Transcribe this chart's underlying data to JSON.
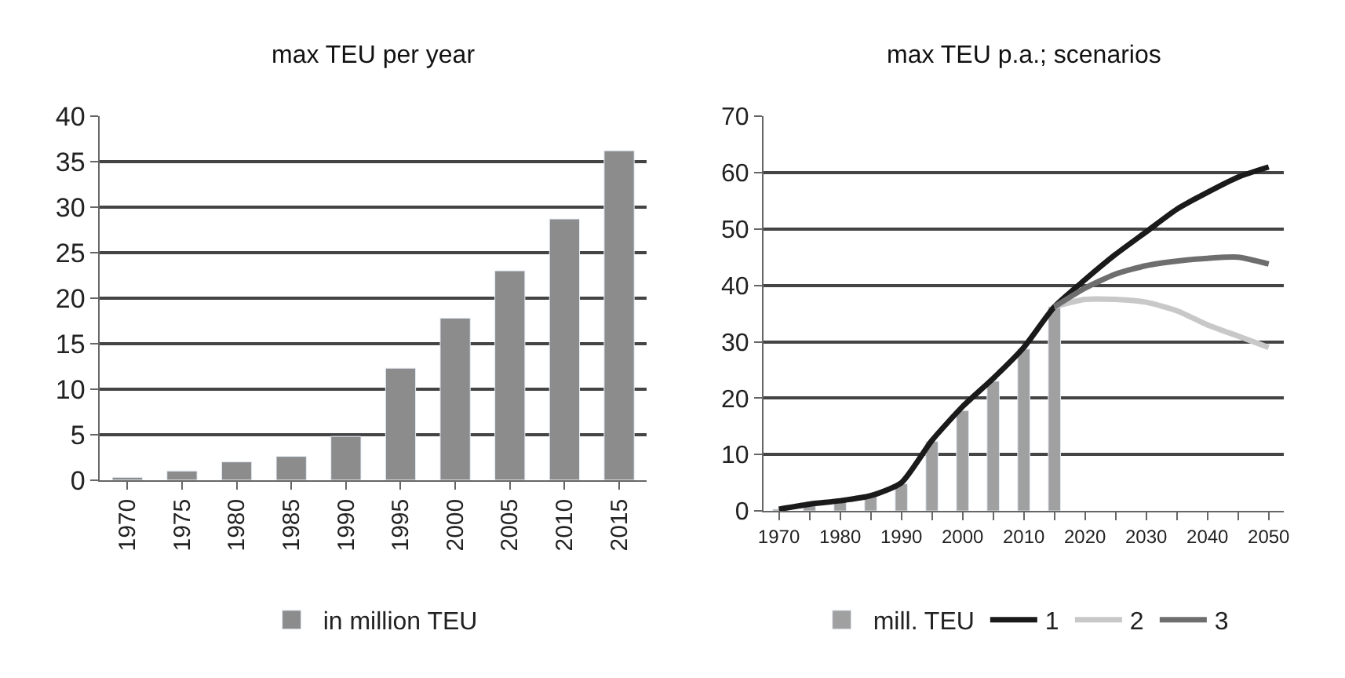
{
  "chart_data": [
    {
      "type": "bar",
      "title": "max TEU per year",
      "categories": [
        "1970",
        "1975",
        "1980",
        "1985",
        "1990",
        "1995",
        "2000",
        "2005",
        "2010",
        "2015"
      ],
      "series": [
        {
          "name": "in million TEU",
          "color": "#8c8c8c",
          "values": [
            0.3,
            1,
            2,
            2.6,
            4.8,
            12.3,
            17.8,
            23,
            28.7,
            36.2
          ]
        }
      ],
      "ylim": [
        0,
        40
      ],
      "yticks": [
        0,
        5,
        10,
        15,
        20,
        25,
        30,
        35,
        40
      ],
      "grid": "y",
      "legend": "bottom"
    },
    {
      "type": "bar",
      "title": "max TEU p.a.; scenarios",
      "xlim": [
        1967.5,
        2052.5
      ],
      "xticks": [
        1970,
        {
          "value": 1975,
          "label": null
        },
        1980,
        {
          "value": 1985,
          "label": null
        },
        1990,
        {
          "value": 1995,
          "label": null
        },
        2000,
        {
          "value": 2005,
          "label": null
        },
        2010,
        {
          "value": 2015,
          "label": null
        },
        2020,
        {
          "value": 2025,
          "label": null
        },
        2030,
        {
          "value": 2035,
          "label": null
        },
        2040,
        {
          "value": 2045,
          "label": null
        },
        2050
      ],
      "series": [
        {
          "name": "mill. TEU",
          "type": "bar",
          "color": "#a0a0a0",
          "x": [
            1970,
            1975,
            1980,
            1985,
            1990,
            1995,
            2000,
            2005,
            2010,
            2015
          ],
          "values": [
            0.3,
            1,
            2,
            2.6,
            4.8,
            12.3,
            17.8,
            23,
            28.7,
            36.2
          ]
        },
        {
          "name": "1",
          "type": "line",
          "color": "#1a1a1a",
          "x": [
            1970,
            1975,
            1980,
            1985,
            1990,
            1995,
            2000,
            2005,
            2010,
            2015,
            2020,
            2025,
            2030,
            2035,
            2040,
            2045,
            2050
          ],
          "values": [
            0.3,
            1.2,
            1.8,
            2.7,
            5,
            12.5,
            18.5,
            23.5,
            29,
            36.2,
            41,
            45.5,
            49.5,
            53.5,
            56.5,
            59.2,
            61
          ]
        },
        {
          "name": "2",
          "type": "line",
          "color": "#c8c8c8",
          "x": [
            2015,
            2020,
            2025,
            2030,
            2035,
            2040,
            2045,
            2050
          ],
          "values": [
            36.2,
            37.5,
            37.5,
            37,
            35.5,
            33,
            31,
            29
          ]
        },
        {
          "name": "3",
          "type": "line",
          "color": "#6e6e6e",
          "x": [
            2015,
            2020,
            2025,
            2030,
            2035,
            2040,
            2045,
            2050
          ],
          "values": [
            36.2,
            39.5,
            42,
            43.5,
            44.3,
            44.8,
            45,
            43.8
          ]
        }
      ],
      "ylim": [
        0,
        70
      ],
      "yticks": [
        0,
        10,
        20,
        30,
        40,
        50,
        60,
        70
      ],
      "grid": "y",
      "legend": "bottom"
    }
  ]
}
